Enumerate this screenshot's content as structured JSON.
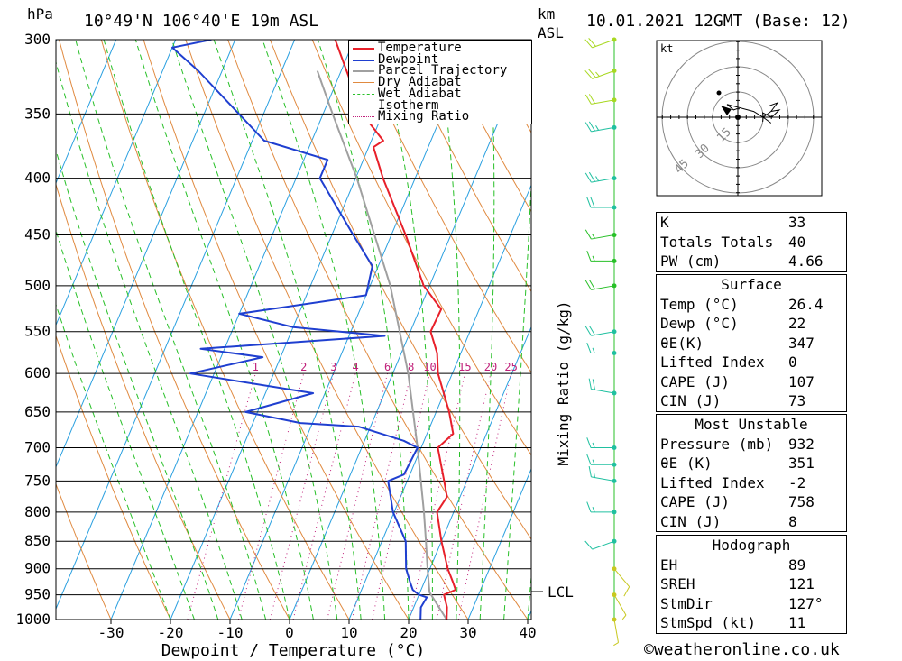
{
  "header": {
    "pressure_unit": "hPa",
    "location": "10°49'N 106°40'E 19m ASL",
    "km_unit": "km",
    "asl_label": "ASL",
    "datetime": "10.01.2021 12GMT (Base: 12)"
  },
  "chart_data": {
    "type": "line",
    "subtype": "skew-t log-p diagram",
    "xlabel": "Dewpoint / Temperature (°C)",
    "ylabel": "hPa",
    "right_axis_label": "Mixing Ratio (g/kg)",
    "x_ticks": [
      -30,
      -20,
      -10,
      0,
      10,
      20,
      30,
      40
    ],
    "pressure_levels": [
      300,
      350,
      400,
      450,
      500,
      550,
      600,
      650,
      700,
      750,
      800,
      850,
      900,
      950,
      1000
    ],
    "mixing_ratio_labels": [
      "1",
      "2",
      "3",
      "4",
      "6",
      "8",
      "10",
      "15",
      "20",
      "25"
    ],
    "mixing_ratio_values": [
      1,
      2,
      3,
      4,
      6,
      8,
      10,
      15,
      20,
      25
    ],
    "lcl_label": "LCL",
    "lcl_pressure": 945,
    "legend": [
      "Temperature",
      "Dewpoint",
      "Parcel Trajectory",
      "Dry Adiabat",
      "Wet Adiabat",
      "Isotherm",
      "Mixing Ratio"
    ],
    "colors": {
      "temperature": "#e8202a",
      "dewpoint": "#1f3fd0",
      "parcel": "#a0a0a0",
      "dry_adiabat": "#e08a40",
      "wet_adiabat": "#28c028",
      "isotherm": "#2aa0e0",
      "mixing_ratio": "#c0207a"
    },
    "temperature_profile": [
      {
        "p": 1000,
        "t": 26.4
      },
      {
        "p": 975,
        "t": 25.6
      },
      {
        "p": 950,
        "t": 24.2
      },
      {
        "p": 940,
        "t": 25.8
      },
      {
        "p": 925,
        "t": 24.8
      },
      {
        "p": 900,
        "t": 23.0
      },
      {
        "p": 850,
        "t": 20.0
      },
      {
        "p": 800,
        "t": 17.2
      },
      {
        "p": 775,
        "t": 17.8
      },
      {
        "p": 750,
        "t": 16.2
      },
      {
        "p": 700,
        "t": 12.8
      },
      {
        "p": 680,
        "t": 14.4
      },
      {
        "p": 650,
        "t": 12.2
      },
      {
        "p": 600,
        "t": 7.6
      },
      {
        "p": 575,
        "t": 6.0
      },
      {
        "p": 550,
        "t": 3.4
      },
      {
        "p": 525,
        "t": 3.6
      },
      {
        "p": 500,
        "t": -1.0
      },
      {
        "p": 450,
        "t": -7.6
      },
      {
        "p": 400,
        "t": -15.4
      },
      {
        "p": 375,
        "t": -19.2
      },
      {
        "p": 370,
        "t": -18.0
      },
      {
        "p": 350,
        "t": -23.4
      },
      {
        "p": 300,
        "t": -33.2
      }
    ],
    "dewpoint_profile": [
      {
        "p": 1000,
        "t": 22.0
      },
      {
        "p": 975,
        "t": 21.2
      },
      {
        "p": 955,
        "t": 21.5
      },
      {
        "p": 950,
        "t": 20.0
      },
      {
        "p": 940,
        "t": 18.6
      },
      {
        "p": 925,
        "t": 17.6
      },
      {
        "p": 900,
        "t": 16.0
      },
      {
        "p": 850,
        "t": 14.0
      },
      {
        "p": 800,
        "t": 9.8
      },
      {
        "p": 750,
        "t": 6.8
      },
      {
        "p": 740,
        "t": 9.0
      },
      {
        "p": 700,
        "t": 9.4
      },
      {
        "p": 690,
        "t": 6.6
      },
      {
        "p": 670,
        "t": -2.0
      },
      {
        "p": 665,
        "t": -12.0
      },
      {
        "p": 650,
        "t": -22.0
      },
      {
        "p": 625,
        "t": -12.0
      },
      {
        "p": 600,
        "t": -34.0
      },
      {
        "p": 580,
        "t": -23.0
      },
      {
        "p": 570,
        "t": -34.0
      },
      {
        "p": 555,
        "t": -4.0
      },
      {
        "p": 545,
        "t": -20.0
      },
      {
        "p": 530,
        "t": -30.0
      },
      {
        "p": 510,
        "t": -10.0
      },
      {
        "p": 480,
        "t": -11.0
      },
      {
        "p": 450,
        "t": -16.4
      },
      {
        "p": 400,
        "t": -26.0
      },
      {
        "p": 385,
        "t": -26.0
      },
      {
        "p": 370,
        "t": -38.0
      },
      {
        "p": 320,
        "t": -54.0
      },
      {
        "p": 305,
        "t": -60.0
      },
      {
        "p": 300,
        "t": -54.0
      }
    ],
    "parcel_profile": [
      {
        "p": 1000,
        "t": 26.4
      },
      {
        "p": 945,
        "t": 21.6
      },
      {
        "p": 900,
        "t": 19.6
      },
      {
        "p": 850,
        "t": 17.4
      },
      {
        "p": 800,
        "t": 15.0
      },
      {
        "p": 700,
        "t": 9.4
      },
      {
        "p": 600,
        "t": 2.6
      },
      {
        "p": 500,
        "t": -6.6
      },
      {
        "p": 400,
        "t": -19.8
      },
      {
        "p": 350,
        "t": -28.4
      },
      {
        "p": 320,
        "t": -34.0
      }
    ],
    "wind_barbs": [
      {
        "p": 300,
        "dir": 250,
        "kt": 20
      },
      {
        "p": 320,
        "dir": 250,
        "kt": 25
      },
      {
        "p": 340,
        "dir": 260,
        "kt": 20
      },
      {
        "p": 360,
        "dir": 260,
        "kt": 25
      },
      {
        "p": 400,
        "dir": 260,
        "kt": 25
      },
      {
        "p": 425,
        "dir": 270,
        "kt": 20
      },
      {
        "p": 450,
        "dir": 260,
        "kt": 15
      },
      {
        "p": 475,
        "dir": 270,
        "kt": 15
      },
      {
        "p": 500,
        "dir": 260,
        "kt": 20
      },
      {
        "p": 550,
        "dir": 260,
        "kt": 20
      },
      {
        "p": 575,
        "dir": 270,
        "kt": 15
      },
      {
        "p": 625,
        "dir": 280,
        "kt": 20
      },
      {
        "p": 700,
        "dir": 270,
        "kt": 15
      },
      {
        "p": 725,
        "dir": 270,
        "kt": 15
      },
      {
        "p": 750,
        "dir": 280,
        "kt": 15
      },
      {
        "p": 800,
        "dir": 270,
        "kt": 15
      },
      {
        "p": 850,
        "dir": 250,
        "kt": 10
      },
      {
        "p": 900,
        "dir": 140,
        "kt": 10
      },
      {
        "p": 950,
        "dir": 150,
        "kt": 5
      },
      {
        "p": 1000,
        "dir": 170,
        "kt": 5
      }
    ]
  },
  "hodograph": {
    "unit": "kt",
    "ring_labels": [
      "15",
      "30",
      "45"
    ]
  },
  "indices": {
    "rows": [
      {
        "label": "K",
        "value": "33"
      },
      {
        "label": "Totals Totals",
        "value": "40"
      },
      {
        "label": "PW (cm)",
        "value": "4.66"
      }
    ]
  },
  "surface": {
    "title": "Surface",
    "rows": [
      {
        "label": "Temp (°C)",
        "value": "26.4"
      },
      {
        "label": "Dewp (°C)",
        "value": "22"
      },
      {
        "label": "θE(K)",
        "value": "347"
      },
      {
        "label": "Lifted Index",
        "value": "0"
      },
      {
        "label": "CAPE (J)",
        "value": "107"
      },
      {
        "label": "CIN (J)",
        "value": "73"
      }
    ]
  },
  "most_unstable": {
    "title": "Most Unstable",
    "rows": [
      {
        "label": "Pressure (mb)",
        "value": "932"
      },
      {
        "label": "θE (K)",
        "value": "351"
      },
      {
        "label": "Lifted Index",
        "value": "-2"
      },
      {
        "label": "CAPE (J)",
        "value": "758"
      },
      {
        "label": "CIN (J)",
        "value": "8"
      }
    ]
  },
  "hodograph_table": {
    "title": "Hodograph",
    "rows": [
      {
        "label": "EH",
        "value": "89"
      },
      {
        "label": "SREH",
        "value": "121"
      },
      {
        "label": "StmDir",
        "value": "127°"
      },
      {
        "label": "StmSpd (kt)",
        "value": "11"
      }
    ]
  },
  "footer": {
    "copyright": "©weatheronline.co.uk"
  }
}
